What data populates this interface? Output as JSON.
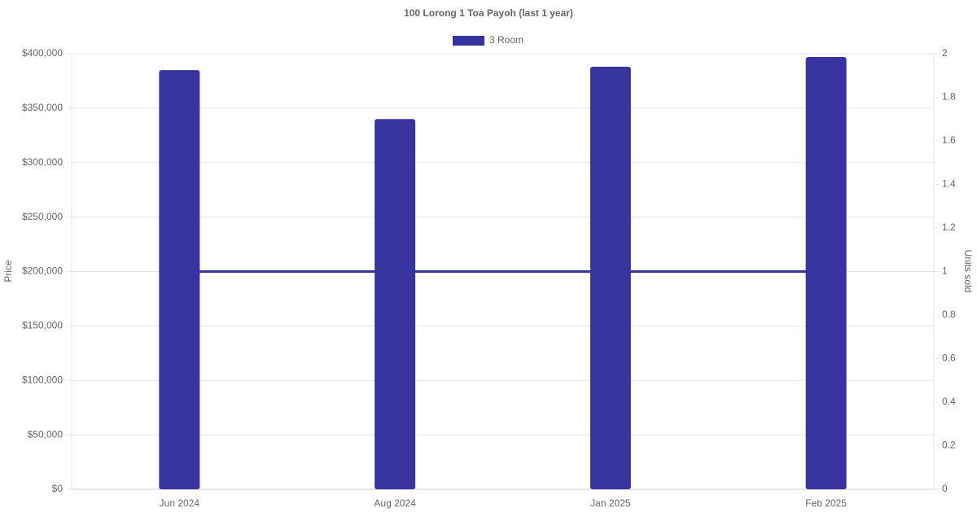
{
  "chart_data": {
    "type": "bar",
    "title": "100 Lorong 1 Toa Payoh (last 1 year)",
    "categories": [
      "Jun 2024",
      "Aug 2024",
      "Jan 2025",
      "Feb 2025"
    ],
    "series": [
      {
        "name": "3 Room",
        "color": "#3734a0",
        "values": [
          385000,
          340000,
          388000,
          397000
        ]
      },
      {
        "type": "line",
        "color": "#3734a0",
        "axis": "y2",
        "values": [
          1,
          1,
          1,
          1
        ]
      }
    ],
    "y_label": "Price",
    "y2_label": "Units sold",
    "ylim": [
      0,
      400000
    ],
    "yticks": [
      {
        "value": 0,
        "label": "$0"
      },
      {
        "value": 50000,
        "label": "$50,000"
      },
      {
        "value": 100000,
        "label": "$100,000"
      },
      {
        "value": 150000,
        "label": "$150,000"
      },
      {
        "value": 200000,
        "label": "$200,000"
      },
      {
        "value": 250000,
        "label": "$250,000"
      },
      {
        "value": 300000,
        "label": "$300,000"
      },
      {
        "value": 350000,
        "label": "$350,000"
      },
      {
        "value": 400000,
        "label": "$400,000"
      }
    ],
    "y2lim": [
      0,
      2
    ],
    "y2ticks": [
      0,
      0.2,
      0.4,
      0.6,
      0.8,
      1,
      1.2,
      1.4,
      1.6,
      1.8,
      2
    ],
    "grid": true,
    "legend": "top"
  }
}
